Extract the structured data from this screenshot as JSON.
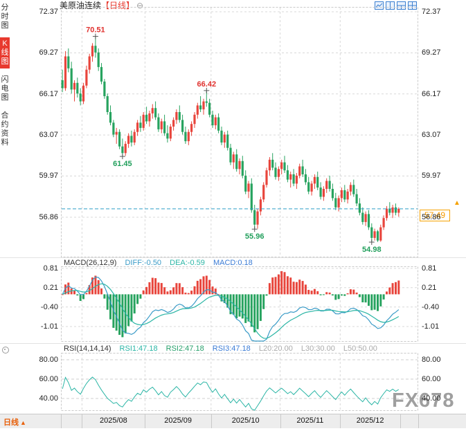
{
  "header": {
    "instrument": "美原油连续",
    "period": "【日线】",
    "zoom_icon": "⊖"
  },
  "markers": {
    "up_arrow": "▲"
  },
  "sidebar": {
    "tabs": [
      {
        "label": "分时图",
        "active": false
      },
      {
        "label": "K线图",
        "active": true
      },
      {
        "label": "闪电图",
        "active": false
      },
      {
        "label": "合约资料",
        "active": false
      }
    ]
  },
  "toolbar": {
    "icons": [
      {
        "name": "single-view-icon"
      },
      {
        "name": "dual-view-icon"
      },
      {
        "name": "tri-view-icon"
      },
      {
        "name": "quad-view-icon"
      }
    ]
  },
  "chart_data": {
    "type": "candlestick",
    "instrument": "美原油连续",
    "interval": "日线",
    "y_axis_ticks": [
      "72.37",
      "69.27",
      "66.17",
      "63.07",
      "59.97",
      "56.86"
    ],
    "x_axis_labels": [
      "2025/08",
      "2025/09",
      "2025/10",
      "2025/11",
      "2025/12"
    ],
    "month_start_indices": [
      7,
      28,
      50,
      73,
      93
    ],
    "current_price": "57.49",
    "annotations": [
      {
        "index": 11,
        "type": "high",
        "label": "70.51"
      },
      {
        "index": 20,
        "type": "low",
        "label": "61.45"
      },
      {
        "index": 48,
        "type": "high",
        "label": "66.42"
      },
      {
        "index": 64,
        "type": "low",
        "label": "55.96"
      },
      {
        "index": 103,
        "type": "low",
        "label": "54.98"
      }
    ],
    "candles_ohlc": [
      [
        67.2,
        68.0,
        66.3,
        66.6
      ],
      [
        66.6,
        69.4,
        66.4,
        69.0
      ],
      [
        69.0,
        69.6,
        67.8,
        68.1
      ],
      [
        68.1,
        68.6,
        66.2,
        66.5
      ],
      [
        66.5,
        67.2,
        65.6,
        67.0
      ],
      [
        67.0,
        67.4,
        65.9,
        66.2
      ],
      [
        66.2,
        66.6,
        65.3,
        65.6
      ],
      [
        65.6,
        67.0,
        65.4,
        66.8
      ],
      [
        66.8,
        68.3,
        66.6,
        68.0
      ],
      [
        68.0,
        69.2,
        67.7,
        69.0
      ],
      [
        69.0,
        70.0,
        68.6,
        69.8
      ],
      [
        69.8,
        70.51,
        68.9,
        69.3
      ],
      [
        69.3,
        69.6,
        67.9,
        68.2
      ],
      [
        68.2,
        68.5,
        66.9,
        67.1
      ],
      [
        67.1,
        67.3,
        65.8,
        66.0
      ],
      [
        66.0,
        66.2,
        64.6,
        64.8
      ],
      [
        64.8,
        65.3,
        63.8,
        64.0
      ],
      [
        64.0,
        64.2,
        62.9,
        63.1
      ],
      [
        63.1,
        63.6,
        62.4,
        63.3
      ],
      [
        63.3,
        63.5,
        62.0,
        62.2
      ],
      [
        62.2,
        62.8,
        61.45,
        61.7
      ],
      [
        61.7,
        62.6,
        61.5,
        62.4
      ],
      [
        62.4,
        63.2,
        62.1,
        63.0
      ],
      [
        63.0,
        63.4,
        62.2,
        62.5
      ],
      [
        62.5,
        63.5,
        62.3,
        63.3
      ],
      [
        63.3,
        64.2,
        63.0,
        64.0
      ],
      [
        64.0,
        64.5,
        63.3,
        63.6
      ],
      [
        63.6,
        64.8,
        63.4,
        64.6
      ],
      [
        64.6,
        65.2,
        63.9,
        64.1
      ],
      [
        64.1,
        64.9,
        63.7,
        64.7
      ],
      [
        64.7,
        65.4,
        64.3,
        65.1
      ],
      [
        65.1,
        65.6,
        64.2,
        64.4
      ],
      [
        64.4,
        64.7,
        63.3,
        63.5
      ],
      [
        63.5,
        64.3,
        63.2,
        64.1
      ],
      [
        64.1,
        64.6,
        63.0,
        63.2
      ],
      [
        63.2,
        63.8,
        62.5,
        62.8
      ],
      [
        62.8,
        63.9,
        62.6,
        63.7
      ],
      [
        63.7,
        64.4,
        63.4,
        64.2
      ],
      [
        64.2,
        65.0,
        63.9,
        64.8
      ],
      [
        64.8,
        65.3,
        64.0,
        64.2
      ],
      [
        64.2,
        64.6,
        63.1,
        63.3
      ],
      [
        63.3,
        63.7,
        62.4,
        62.6
      ],
      [
        62.6,
        63.5,
        62.3,
        63.3
      ],
      [
        63.3,
        64.1,
        63.0,
        63.9
      ],
      [
        63.9,
        64.8,
        63.6,
        64.6
      ],
      [
        64.6,
        65.5,
        64.3,
        65.3
      ],
      [
        65.3,
        66.0,
        64.8,
        65.0
      ],
      [
        65.0,
        65.8,
        64.6,
        65.6
      ],
      [
        65.6,
        66.42,
        65.2,
        65.5
      ],
      [
        65.5,
        65.8,
        64.4,
        64.6
      ],
      [
        64.6,
        64.9,
        63.6,
        63.8
      ],
      [
        63.8,
        64.6,
        63.5,
        64.4
      ],
      [
        64.4,
        64.7,
        63.2,
        63.4
      ],
      [
        63.4,
        63.7,
        62.3,
        62.5
      ],
      [
        62.5,
        63.3,
        62.1,
        63.1
      ],
      [
        63.1,
        63.4,
        61.9,
        62.1
      ],
      [
        62.1,
        62.4,
        60.8,
        61.0
      ],
      [
        61.0,
        61.8,
        60.5,
        61.6
      ],
      [
        61.6,
        62.0,
        60.3,
        60.5
      ],
      [
        60.5,
        61.3,
        60.1,
        61.1
      ],
      [
        61.1,
        61.5,
        59.8,
        60.0
      ],
      [
        60.0,
        60.4,
        58.6,
        58.8
      ],
      [
        58.8,
        59.6,
        58.3,
        59.4
      ],
      [
        59.4,
        59.8,
        57.2,
        57.4
      ],
      [
        57.4,
        57.8,
        55.96,
        56.3
      ],
      [
        56.3,
        57.5,
        56.0,
        57.3
      ],
      [
        57.3,
        58.4,
        57.0,
        58.2
      ],
      [
        58.2,
        59.5,
        58.0,
        59.3
      ],
      [
        59.3,
        60.6,
        59.1,
        60.4
      ],
      [
        60.4,
        61.4,
        60.0,
        61.2
      ],
      [
        61.2,
        61.7,
        60.4,
        60.6
      ],
      [
        60.6,
        61.0,
        59.7,
        59.9
      ],
      [
        59.9,
        60.7,
        59.6,
        60.5
      ],
      [
        60.5,
        61.2,
        60.1,
        61.0
      ],
      [
        61.0,
        61.5,
        60.2,
        60.4
      ],
      [
        60.4,
        60.8,
        59.5,
        59.7
      ],
      [
        59.7,
        60.3,
        59.1,
        60.1
      ],
      [
        60.1,
        60.5,
        59.2,
        59.4
      ],
      [
        59.4,
        60.2,
        59.0,
        60.0
      ],
      [
        60.0,
        60.9,
        59.8,
        60.7
      ],
      [
        60.7,
        61.2,
        59.9,
        60.1
      ],
      [
        60.1,
        60.5,
        59.3,
        59.5
      ],
      [
        59.5,
        59.9,
        58.6,
        58.8
      ],
      [
        58.8,
        59.6,
        58.5,
        59.4
      ],
      [
        59.4,
        60.1,
        59.0,
        59.9
      ],
      [
        59.9,
        60.3,
        58.9,
        59.1
      ],
      [
        59.1,
        59.5,
        58.2,
        58.4
      ],
      [
        58.4,
        59.2,
        58.1,
        59.0
      ],
      [
        59.0,
        59.8,
        58.7,
        59.6
      ],
      [
        59.6,
        60.0,
        58.8,
        59.0
      ],
      [
        59.0,
        59.4,
        58.1,
        58.3
      ],
      [
        58.3,
        58.7,
        57.4,
        57.6
      ],
      [
        57.6,
        58.5,
        57.3,
        58.3
      ],
      [
        58.3,
        59.1,
        58.0,
        58.9
      ],
      [
        58.9,
        59.3,
        58.0,
        58.2
      ],
      [
        58.2,
        59.0,
        57.9,
        58.8
      ],
      [
        58.8,
        59.5,
        58.5,
        59.3
      ],
      [
        59.3,
        59.7,
        58.4,
        58.6
      ],
      [
        58.6,
        59.0,
        57.7,
        57.9
      ],
      [
        57.9,
        58.3,
        57.0,
        57.2
      ],
      [
        57.2,
        57.6,
        56.3,
        56.5
      ],
      [
        56.5,
        57.3,
        56.2,
        57.1
      ],
      [
        57.1,
        57.4,
        55.9,
        56.1
      ],
      [
        56.1,
        56.4,
        54.98,
        55.3
      ],
      [
        55.3,
        56.0,
        55.1,
        55.8
      ],
      [
        55.8,
        55.9,
        54.99,
        55.1
      ],
      [
        55.1,
        56.3,
        55.0,
        56.1
      ],
      [
        56.1,
        57.0,
        55.9,
        56.8
      ],
      [
        56.8,
        57.7,
        56.6,
        57.5
      ],
      [
        57.5,
        58.0,
        57.0,
        57.2
      ],
      [
        57.2,
        57.8,
        56.8,
        57.6
      ],
      [
        57.6,
        57.9,
        57.0,
        57.2
      ],
      [
        57.2,
        57.6,
        56.9,
        57.49
      ]
    ],
    "macd": {
      "title": "MACD(26,12,9)",
      "diff": "DIFF:-0.50",
      "dea": "DEA:-0.59",
      "macd": "MACD:0.18",
      "y_axis_ticks": [
        "0.81",
        "0.21",
        "-0.40",
        "-1.01"
      ]
    },
    "rsi": {
      "title": "RSI(14,14,14)",
      "rsi1": "RSI1:47.18",
      "rsi2": "RSI2:47.18",
      "rsi3": "RSI3:47.18",
      "l20": "L20:20.00",
      "l30": "L30:30.00",
      "l50": "L50:50.00",
      "y_axis_ticks": [
        "80.00",
        "60.00",
        "40.00"
      ]
    }
  },
  "colors": {
    "up": "#e8453c",
    "down": "#27a35f",
    "grid": "#d8d8d8",
    "accent": "#f5a100",
    "price_line": "#2f9ec7",
    "diff_line": "#3a9bc7",
    "dea_line": "#2ab5a5",
    "rsi_line": "#2ab5a5",
    "annotation_high": "#e0312e",
    "annotation_low": "#1f9e5a"
  },
  "bottom": {
    "period_label": "日线",
    "watermark": "FX678"
  }
}
